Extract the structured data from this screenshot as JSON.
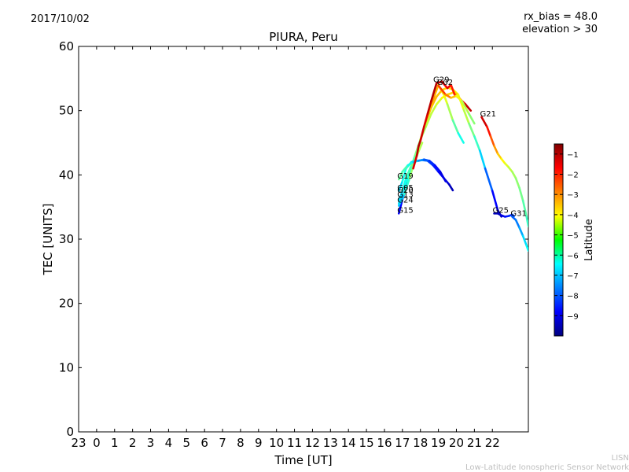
{
  "header": {
    "date": "2017/10/02",
    "rx_bias": "rx_bias = 48.0",
    "elevation": "elevation > 30"
  },
  "footer": {
    "line1": "LISN",
    "line2": "Low-Latitude Ionospheric Sensor Network"
  },
  "chart_data": {
    "type": "scatter",
    "title": "PIURA, Peru",
    "xlabel": "Time [UT]",
    "ylabel": "TEC [UNITS]",
    "xlim": [
      -1,
      24
    ],
    "ylim": [
      0,
      60
    ],
    "xticks": [
      -1,
      0,
      1,
      2,
      3,
      4,
      5,
      6,
      7,
      8,
      9,
      10,
      11,
      12,
      13,
      14,
      15,
      16,
      17,
      18,
      19,
      20,
      21,
      22
    ],
    "xtick_labels": [
      "23",
      "0",
      "1",
      "2",
      "3",
      "4",
      "5",
      "6",
      "7",
      "8",
      "9",
      "10",
      "11",
      "12",
      "13",
      "14",
      "15",
      "16",
      "17",
      "18",
      "19",
      "20",
      "21",
      "22"
    ],
    "yticks": [
      0,
      10,
      20,
      30,
      40,
      50,
      60
    ],
    "colorbar": {
      "label": "Latitude",
      "range": [
        -10,
        -0.5
      ],
      "ticks": [
        -1,
        -2,
        -3,
        -4,
        -5,
        -6,
        -7,
        -8,
        -9
      ],
      "tick_labels": [
        "−1",
        "−2",
        "−3",
        "−4",
        "−5",
        "−6",
        "−7",
        "−8",
        "−9"
      ]
    },
    "series": [
      {
        "name": "G15",
        "label": "G15",
        "label_at": [
          16.8,
          34.0
        ],
        "points": [
          [
            16.8,
            34.0,
            -9.3
          ],
          [
            17.0,
            36.2,
            -8.3
          ],
          [
            17.3,
            39.0,
            -7.0
          ],
          [
            17.6,
            41.5,
            -5.5
          ],
          [
            17.9,
            44.5,
            -4.0
          ],
          [
            18.2,
            47.2,
            -3.2
          ],
          [
            18.5,
            50.0,
            -3.0
          ],
          [
            18.8,
            52.5,
            -3.2
          ],
          [
            19.0,
            54.0,
            -3.5
          ],
          [
            19.3,
            52.5,
            -4.2
          ],
          [
            19.5,
            51.0,
            -4.5
          ],
          [
            19.8,
            48.5,
            -5.2
          ],
          [
            20.1,
            46.5,
            -6.0
          ],
          [
            20.4,
            45.0,
            -6.5
          ]
        ]
      },
      {
        "name": "G24",
        "label": "G24",
        "label_at": [
          16.8,
          35.6
        ],
        "points": [
          [
            16.8,
            35.2,
            -7.5
          ],
          [
            17.1,
            37.0,
            -6.5
          ],
          [
            17.4,
            39.5,
            -5.5
          ],
          [
            17.7,
            42.5,
            -4.5
          ],
          [
            18.0,
            45.5,
            -4.0
          ],
          [
            18.3,
            48.2,
            -3.6
          ],
          [
            18.6,
            50.5,
            -3.4
          ],
          [
            18.9,
            52.2,
            -3.4
          ],
          [
            19.2,
            53.2,
            -3.6
          ],
          [
            19.5,
            53.6,
            -3.8
          ],
          [
            19.8,
            53.3,
            -3.8
          ],
          [
            20.1,
            52.5,
            -4.0
          ],
          [
            20.4,
            50.2,
            -4.4
          ],
          [
            20.7,
            48.0,
            -5.0
          ],
          [
            21.0,
            46.0,
            -5.6
          ],
          [
            21.3,
            43.8,
            -6.2
          ],
          [
            21.6,
            41.0,
            -7.5
          ],
          [
            22.0,
            37.5,
            -8.3
          ],
          [
            22.3,
            34.5,
            -9.3
          ],
          [
            22.5,
            33.5,
            -9.6
          ]
        ]
      },
      {
        "name": "G13",
        "label": "G13",
        "label_at": [
          16.8,
          36.4
        ],
        "points": [
          [
            16.8,
            36.0,
            -7.0
          ],
          [
            17.1,
            38.2,
            -6.5
          ],
          [
            17.4,
            40.5,
            -6.0
          ],
          [
            17.7,
            43.0,
            -5.5
          ],
          [
            18.0,
            45.5,
            -5.0
          ],
          [
            18.3,
            47.5,
            -4.8
          ],
          [
            18.6,
            49.5,
            -4.6
          ],
          [
            18.9,
            51.0,
            -4.6
          ],
          [
            19.2,
            52.0,
            -4.2
          ],
          [
            19.5,
            52.5,
            -3.8
          ],
          [
            19.8,
            52.8,
            -3.6
          ],
          [
            20.0,
            52.6,
            -3.5
          ]
        ]
      },
      {
        "name": "G20",
        "label": "G20",
        "label_at": [
          16.8,
          37.1
        ],
        "points": [
          [
            16.8,
            35.5,
            -7.0
          ],
          [
            17.0,
            37.5,
            -6.5
          ],
          [
            17.2,
            39.5,
            -6.0
          ],
          [
            17.5,
            41.5,
            -5.5
          ],
          [
            17.8,
            43.0,
            -5.0
          ],
          [
            18.1,
            45.0,
            -4.6
          ]
        ]
      },
      {
        "name": "G05",
        "label": "G05",
        "label_at": [
          16.8,
          37.5
        ],
        "points": [
          [
            16.8,
            37.5,
            -7.0
          ],
          [
            17.0,
            39.0,
            -6.5
          ],
          [
            17.2,
            41.0,
            -6.0
          ],
          [
            17.5,
            42.0,
            -6.5
          ],
          [
            17.8,
            42.2,
            -7.0
          ],
          [
            18.1,
            42.3,
            -7.5
          ],
          [
            18.4,
            42.2,
            -8.0
          ],
          [
            18.7,
            41.5,
            -8.4
          ],
          [
            19.0,
            40.5,
            -8.7
          ],
          [
            19.3,
            39.5,
            -9.0
          ],
          [
            19.6,
            38.5,
            -9.3
          ],
          [
            19.8,
            37.6,
            -9.6
          ]
        ]
      },
      {
        "name": "G19",
        "label": "G19",
        "label_at": [
          16.8,
          39.3
        ],
        "points": [
          [
            16.8,
            39.3,
            -5.5
          ],
          [
            17.0,
            40.5,
            -5.5
          ],
          [
            17.3,
            41.5,
            -6.0
          ],
          [
            17.6,
            42.0,
            -6.5
          ],
          [
            17.9,
            42.2,
            -7.2
          ],
          [
            18.2,
            42.4,
            -7.8
          ],
          [
            18.5,
            42.2,
            -8.2
          ],
          [
            18.8,
            41.5,
            -8.6
          ],
          [
            19.1,
            40.5,
            -8.9
          ],
          [
            19.4,
            39.0,
            -9.2
          ]
        ]
      },
      {
        "name": "G29",
        "label": "G29",
        "label_at": [
          18.8,
          54.3
        ],
        "points": [
          [
            17.6,
            41.0,
            -1.5
          ],
          [
            17.8,
            43.0,
            -1.2
          ],
          [
            17.9,
            44.5,
            -1.0
          ],
          [
            18.0,
            45.3,
            -1.0
          ],
          [
            18.2,
            47.5,
            -1.5
          ],
          [
            18.4,
            49.5,
            -1.2
          ],
          [
            18.6,
            51.5,
            -1.0
          ],
          [
            18.9,
            54.3,
            -1.0
          ],
          [
            19.2,
            54.5,
            -1.5
          ],
          [
            19.5,
            53.5,
            -1.7
          ],
          [
            19.7,
            54.0,
            -1.3
          ],
          [
            19.9,
            52.5,
            -2.5
          ],
          [
            20.2,
            51.8,
            -1.8
          ],
          [
            20.5,
            51.0,
            -1.3
          ],
          [
            20.8,
            50.0,
            -1.0
          ]
        ]
      },
      {
        "name": "G02",
        "label": "G02",
        "label_at": [
          19.0,
          53.9
        ],
        "points": [
          [
            19.0,
            53.9,
            -2.0
          ],
          [
            19.4,
            52.5,
            -2.5
          ],
          [
            19.7,
            52.0,
            -3.2
          ],
          [
            20.0,
            52.3,
            -3.8
          ],
          [
            20.3,
            51.5,
            -4.5
          ],
          [
            20.7,
            49.5,
            -5.0
          ],
          [
            21.0,
            48.0,
            -5.3
          ]
        ]
      },
      {
        "name": "G21",
        "label": "G21",
        "label_at": [
          21.4,
          49.0
        ],
        "points": [
          [
            21.4,
            49.0,
            -1.0
          ],
          [
            21.7,
            47.5,
            -1.5
          ],
          [
            21.9,
            46.0,
            -2.2
          ],
          [
            22.1,
            44.5,
            -2.8
          ],
          [
            22.3,
            43.3,
            -3.4
          ],
          [
            22.5,
            42.5,
            -3.8
          ],
          [
            22.7,
            41.8,
            -4.2
          ],
          [
            22.9,
            41.2,
            -4.5
          ],
          [
            23.1,
            40.5,
            -4.8
          ],
          [
            23.3,
            39.5,
            -5.0
          ],
          [
            23.5,
            38.0,
            -5.2
          ],
          [
            23.7,
            36.0,
            -5.5
          ],
          [
            23.9,
            33.5,
            -5.8
          ],
          [
            24.0,
            32.0,
            -6.0
          ]
        ]
      },
      {
        "name": "G25",
        "label": "G25",
        "label_at": [
          22.1,
          34.0
        ],
        "points": [
          [
            22.1,
            34.0,
            -9.5
          ],
          [
            22.3,
            34.0,
            -9.4
          ],
          [
            22.5,
            33.7,
            -9.3
          ],
          [
            22.7,
            33.5,
            -8.8
          ],
          [
            22.9,
            33.6,
            -8.5
          ],
          [
            23.1,
            33.8,
            -8.3
          ],
          [
            23.2,
            33.6,
            -8.0
          ]
        ]
      },
      {
        "name": "G31",
        "label": "G31",
        "label_at": [
          23.1,
          33.5
        ],
        "points": [
          [
            23.1,
            33.5,
            -8.0
          ],
          [
            23.3,
            33.0,
            -7.8
          ],
          [
            23.5,
            31.8,
            -7.5
          ],
          [
            23.7,
            30.5,
            -7.0
          ],
          [
            23.9,
            29.0,
            -6.5
          ],
          [
            24.0,
            28.2,
            -6.3
          ]
        ]
      }
    ]
  }
}
